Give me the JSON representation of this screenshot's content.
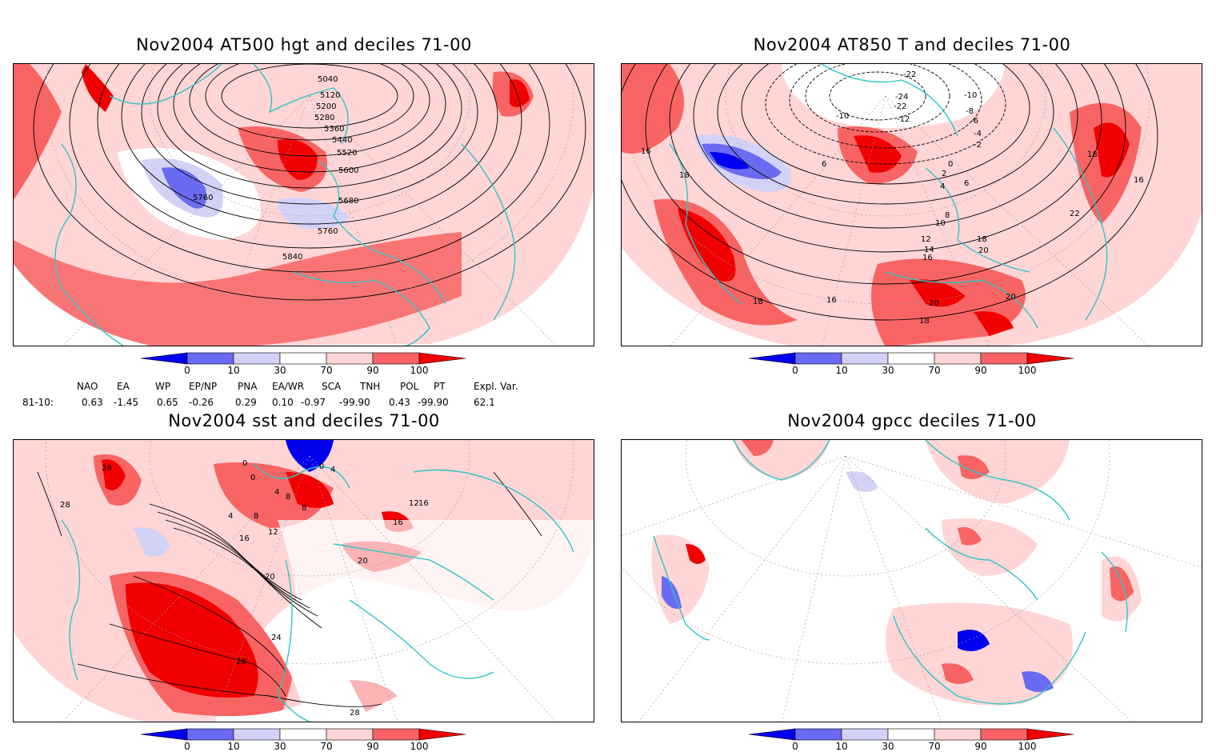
{
  "panels": [
    {
      "title": "Nov2004 AT500 hgt and deciles 71-00",
      "contour_labels": [
        "5040",
        "5120",
        "5200",
        "5280",
        "5360",
        "5440",
        "5520",
        "5600",
        "5680",
        "5760",
        "5760",
        "5840"
      ]
    },
    {
      "title": "Nov2004 AT850 T and deciles 71-00",
      "contour_labels": [
        "-22",
        "-24",
        "-22",
        "-10",
        "-10",
        "-8",
        "-6",
        "-12",
        "-4",
        "-2",
        "0",
        "2",
        "4",
        "6",
        "6",
        "8",
        "10",
        "12",
        "14",
        "16",
        "16",
        "16",
        "18",
        "18",
        "18",
        "18",
        "18",
        "20",
        "20",
        "20",
        "22",
        "16"
      ]
    },
    {
      "title": "Nov2004 sst and deciles 71-00",
      "contour_labels": [
        "28",
        "28",
        "0",
        "0",
        "0",
        "4",
        "4",
        "4",
        "8",
        "8",
        "8",
        "12",
        "12",
        "16",
        "16",
        "16",
        "20",
        "20",
        "24",
        "28",
        "28"
      ]
    },
    {
      "title": "Nov2004 gpcc deciles 71-00",
      "contour_labels": []
    }
  ],
  "colorbar": {
    "ticks": [
      "0",
      "10",
      "30",
      "70",
      "90",
      "100"
    ],
    "colors": [
      "#0000ee",
      "#6a6af2",
      "#d2d2f7",
      "#ffffff",
      "#ffd5d5",
      "#f86464",
      "#f20000"
    ]
  },
  "indices": {
    "headers": [
      "NAO",
      "EA",
      "WP",
      "EP/NP",
      "PNA",
      "EA/WR",
      "SCA",
      "TNH",
      "POL",
      "PT",
      "Expl. Var."
    ],
    "row_label": "81-10:",
    "values": [
      "0.63",
      "-1.45",
      "0.65",
      "-0.26",
      "0.29",
      "0.10",
      "-0.97",
      "-99.90",
      "0.43",
      "-99.90",
      "62.1"
    ]
  },
  "style": {
    "coast_color": "#2fc5c5",
    "grid_color": "#9a9a9a"
  }
}
